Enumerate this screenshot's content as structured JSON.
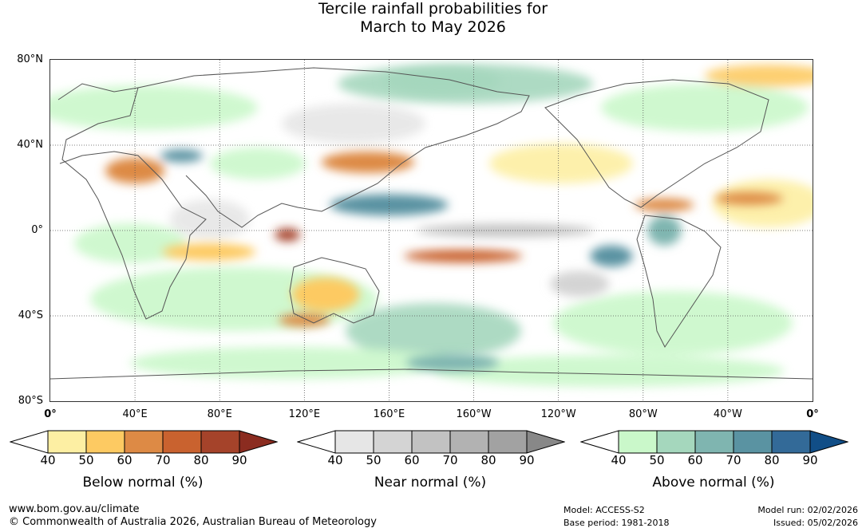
{
  "title_line1": "Tercile rainfall probabilities for",
  "title_line2": "March to May 2026",
  "lat_labels": [
    "80°N",
    "40°N",
    "0°",
    "40°S",
    "80°S"
  ],
  "lon_labels": [
    "0°",
    "40°E",
    "80°E",
    "120°E",
    "160°E",
    "160°W",
    "120°W",
    "80°W",
    "40°W",
    "0°"
  ],
  "colorbars": [
    {
      "name": "below",
      "title": "Below normal (%)",
      "ticks": [
        "40",
        "50",
        "60",
        "70",
        "80",
        "90"
      ],
      "colors": [
        "#ffffff",
        "#fdefa3",
        "#fdca62",
        "#dd8a45",
        "#c9622f",
        "#a5432a",
        "#8b2c20"
      ]
    },
    {
      "name": "near",
      "title": "Near normal (%)",
      "ticks": [
        "40",
        "50",
        "60",
        "70",
        "80",
        "90"
      ],
      "colors": [
        "#ffffff",
        "#e6e6e6",
        "#d4d4d4",
        "#c2c2c2",
        "#b2b2b2",
        "#a2a2a2",
        "#888888"
      ]
    },
    {
      "name": "above",
      "title": "Above normal (%)",
      "ticks": [
        "40",
        "50",
        "60",
        "70",
        "80",
        "90"
      ],
      "colors": [
        "#ffffff",
        "#caf8ca",
        "#a5d7bd",
        "#7fb5b0",
        "#5a93a2",
        "#336a98",
        "#114e87"
      ]
    }
  ],
  "footer": {
    "url": "www.bom.gov.au/climate",
    "copyright": "© Commonwealth of Australia 2026, Australian Bureau of Meteorology",
    "model": "Model: ACCESS-S2",
    "base_period": "Base period: 1981-2018",
    "model_run": "Model run: 02/02/2026",
    "issued": "Issued: 05/02/2026"
  },
  "map_regions": [
    {
      "name": "below-north-africa-arabia",
      "category": "below",
      "level": 3,
      "lon": 40,
      "lat": 28,
      "rx": 14,
      "ry": 6
    },
    {
      "name": "below-west-pacific-northern",
      "category": "below",
      "level": 3,
      "lon": 150,
      "lat": 32,
      "rx": 22,
      "ry": 5
    },
    {
      "name": "below-maritime-continent",
      "category": "below",
      "level": 5,
      "lon": 112,
      "lat": -2,
      "rx": 6,
      "ry": 3
    },
    {
      "name": "below-south-pacific-band",
      "category": "below",
      "level": 4,
      "lon": -165,
      "lat": -12,
      "rx": 28,
      "ry": 3
    },
    {
      "name": "below-caribbean",
      "category": "below",
      "level": 3,
      "lon": -70,
      "lat": 12,
      "rx": 14,
      "ry": 3
    },
    {
      "name": "below-tropical-atlantic",
      "category": "below",
      "level": 3,
      "lon": -30,
      "lat": 15,
      "rx": 16,
      "ry": 3
    },
    {
      "name": "below-australia",
      "category": "below",
      "level": 2,
      "lon": 130,
      "lat": -30,
      "rx": 16,
      "ry": 8
    },
    {
      "name": "below-indian-ocean",
      "category": "below",
      "level": 2,
      "lon": 75,
      "lat": -10,
      "rx": 22,
      "ry": 4
    },
    {
      "name": "below-southern-ocean-indian",
      "category": "below",
      "level": 3,
      "lon": 120,
      "lat": -42,
      "rx": 12,
      "ry": 3
    },
    {
      "name": "above-west-pacific",
      "category": "above",
      "level": 4,
      "lon": 160,
      "lat": 12,
      "rx": 28,
      "ry": 5
    },
    {
      "name": "above-east-pacific",
      "category": "above",
      "level": 4,
      "lon": -95,
      "lat": -12,
      "rx": 10,
      "ry": 5
    },
    {
      "name": "above-central-asia",
      "category": "above",
      "level": 4,
      "lon": 62,
      "lat": 35,
      "rx": 10,
      "ry": 3
    },
    {
      "name": "above-south-america",
      "category": "above",
      "level": 3,
      "lon": -70,
      "lat": 0,
      "rx": 8,
      "ry": 7
    },
    {
      "name": "above-southern-ocean-pacific",
      "category": "above",
      "level": 3,
      "lon": -170,
      "lat": -62,
      "rx": 22,
      "ry": 4
    },
    {
      "name": "above-arctic-pacific",
      "category": "above",
      "level": 2,
      "lon": -175,
      "lat": 70,
      "rx": 28,
      "ry": 6
    },
    {
      "name": "near-equatorial-pacific",
      "category": "near",
      "level": 3,
      "lon": -145,
      "lat": 0,
      "rx": 42,
      "ry": 3
    },
    {
      "name": "near-southeast-pacific",
      "category": "near",
      "level": 2,
      "lon": -110,
      "lat": -25,
      "rx": 14,
      "ry": 6
    }
  ]
}
